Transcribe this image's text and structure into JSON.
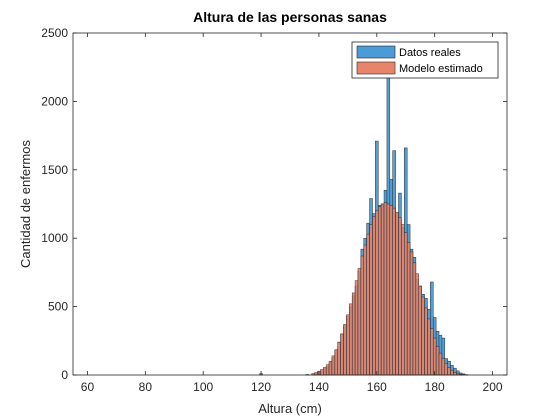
{
  "chart_data": {
    "type": "bar",
    "title": "Altura de las personas sanas",
    "xlabel": "Altura (cm)",
    "ylabel": "Cantidad de enfermos",
    "xlim": [
      55,
      205
    ],
    "ylim": [
      0,
      2500
    ],
    "xticks": [
      "60",
      "80",
      "100",
      "120",
      "140",
      "160",
      "180",
      "200"
    ],
    "xtick_values": [
      60,
      80,
      100,
      120,
      140,
      160,
      180,
      200
    ],
    "yticks": [
      "0",
      "500",
      "1000",
      "1500",
      "2000",
      "2500"
    ],
    "ytick_values": [
      0,
      500,
      1000,
      1500,
      2000,
      2500
    ],
    "bin_width": 1,
    "legend_position": "top-right",
    "grid": false,
    "series": [
      {
        "name": "Datos reales",
        "color": "#4A9BD6",
        "x": [
          120,
          136,
          138,
          139,
          140,
          141,
          142,
          143,
          144,
          145,
          146,
          147,
          148,
          149,
          150,
          151,
          152,
          153,
          154,
          155,
          156,
          157,
          158,
          159,
          160,
          161,
          162,
          163,
          164,
          165,
          166,
          167,
          168,
          169,
          170,
          171,
          172,
          173,
          174,
          175,
          176,
          177,
          178,
          179,
          180,
          181,
          182,
          183,
          184,
          185,
          186,
          187,
          188,
          189,
          190,
          191
        ],
        "values": [
          10,
          3,
          8,
          12,
          20,
          30,
          45,
          60,
          90,
          130,
          180,
          240,
          300,
          360,
          430,
          500,
          580,
          650,
          760,
          920,
          1000,
          1110,
          1290,
          1180,
          1710,
          1240,
          1250,
          1350,
          2230,
          1430,
          1640,
          1180,
          1330,
          1080,
          1660,
          1100,
          920,
          860,
          700,
          650,
          590,
          560,
          480,
          680,
          420,
          320,
          290,
          270,
          120,
          100,
          70,
          50,
          30,
          15,
          8,
          3
        ]
      },
      {
        "name": "Modelo estimado",
        "color": "#E8846A",
        "x": [
          136,
          138,
          139,
          140,
          141,
          142,
          143,
          144,
          145,
          146,
          147,
          148,
          149,
          150,
          151,
          152,
          153,
          154,
          155,
          156,
          157,
          158,
          159,
          160,
          161,
          162,
          163,
          164,
          165,
          166,
          167,
          168,
          169,
          170,
          171,
          172,
          173,
          174,
          175,
          176,
          177,
          178,
          179,
          180,
          181,
          182,
          183,
          184,
          185,
          186,
          187,
          188,
          189,
          190,
          191
        ],
        "values": [
          3,
          10,
          18,
          28,
          40,
          55,
          75,
          100,
          140,
          185,
          240,
          300,
          370,
          440,
          520,
          600,
          690,
          780,
          870,
          950,
          1030,
          1100,
          1160,
          1200,
          1230,
          1250,
          1260,
          1250,
          1240,
          1220,
          1190,
          1150,
          1100,
          1040,
          970,
          900,
          820,
          740,
          650,
          570,
          490,
          410,
          340,
          270,
          210,
          160,
          120,
          85,
          55,
          35,
          20,
          12,
          6,
          3,
          1
        ]
      }
    ]
  }
}
